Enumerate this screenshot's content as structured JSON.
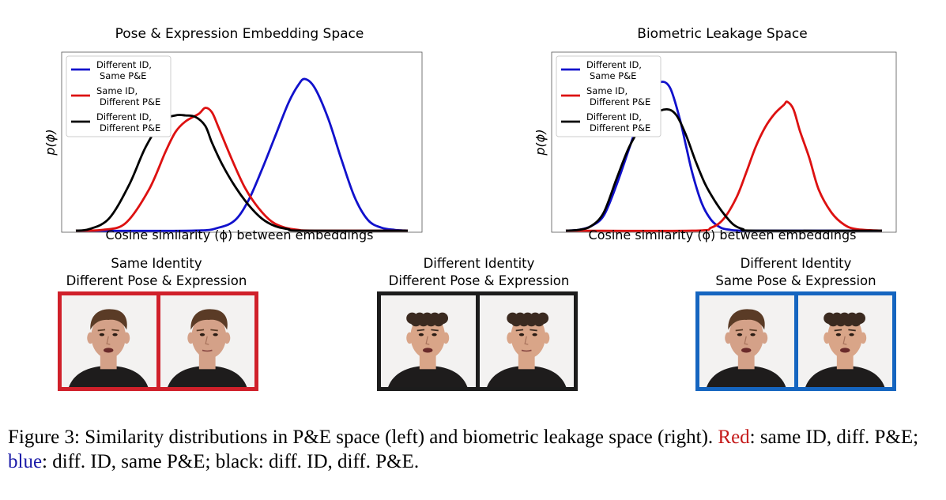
{
  "colors": {
    "blue": "#1111cc",
    "red": "#dd1111",
    "black": "#000000",
    "frame_red": "#d0202a",
    "frame_black": "#1c1c1c",
    "frame_blue": "#1565c0",
    "caption_red": "#c51b1b",
    "caption_blue": "#1a1aa8"
  },
  "chart_data": [
    {
      "type": "line",
      "title": "Pose & Expression Embedding Space",
      "xlabel": "Cosine similarity (ϕ) between embeddings",
      "ylabel": "p(ϕ)",
      "x_ticks": "hidden",
      "y_ticks": "hidden",
      "grid": false,
      "legend_position": "upper-left",
      "legend": [
        {
          "line1": "Different ID,",
          "line2": "Same P&E",
          "color": "#1111cc"
        },
        {
          "line1": "Same ID,",
          "line2": "Different P&E",
          "color": "#dd1111"
        },
        {
          "line1": "Different ID,",
          "line2": "Different P&E",
          "color": "#000000"
        }
      ],
      "xlim": [
        0,
        1
      ],
      "ylim": [
        0,
        1
      ],
      "series": [
        {
          "name": "Different ID, Same P&E",
          "color": "#1111cc",
          "x": [
            0.0,
            0.35,
            0.43,
            0.48,
            0.52,
            0.56,
            0.6,
            0.64,
            0.67,
            0.69,
            0.72,
            0.76,
            0.8,
            0.84,
            0.88,
            0.92,
            0.96,
            1.0
          ],
          "y": [
            0.0,
            0.0,
            0.02,
            0.07,
            0.2,
            0.4,
            0.62,
            0.84,
            0.96,
            1.0,
            0.94,
            0.74,
            0.47,
            0.22,
            0.07,
            0.02,
            0.005,
            0.0
          ]
        },
        {
          "name": "Same ID, Different P&E",
          "color": "#dd1111",
          "x": [
            0.0,
            0.08,
            0.15,
            0.22,
            0.27,
            0.3,
            0.33,
            0.37,
            0.39,
            0.41,
            0.43,
            0.47,
            0.51,
            0.55,
            0.59,
            0.63,
            0.67,
            0.72,
            1.0
          ],
          "y": [
            0.0,
            0.005,
            0.05,
            0.27,
            0.52,
            0.65,
            0.72,
            0.77,
            0.81,
            0.78,
            0.68,
            0.47,
            0.28,
            0.15,
            0.06,
            0.02,
            0.005,
            0.0,
            0.0
          ]
        },
        {
          "name": "Different ID, Different P&E",
          "color": "#000000",
          "x": [
            0.0,
            0.04,
            0.1,
            0.16,
            0.21,
            0.26,
            0.3,
            0.33,
            0.36,
            0.39,
            0.41,
            0.44,
            0.48,
            0.52,
            0.56,
            0.6,
            0.64,
            0.68,
            1.0
          ],
          "y": [
            0.0,
            0.01,
            0.08,
            0.3,
            0.55,
            0.72,
            0.76,
            0.76,
            0.75,
            0.69,
            0.58,
            0.44,
            0.29,
            0.17,
            0.08,
            0.03,
            0.01,
            0.0,
            0.0
          ]
        }
      ]
    },
    {
      "type": "line",
      "title": "Biometric Leakage Space",
      "xlabel": "Cosine similarity (ϕ) between embeddings",
      "ylabel": "p(ϕ)",
      "x_ticks": "hidden",
      "y_ticks": "hidden",
      "grid": false,
      "legend_position": "upper-left",
      "legend": [
        {
          "line1": "Different ID,",
          "line2": "Same P&E",
          "color": "#1111cc"
        },
        {
          "line1": "Same ID,",
          "line2": "Different P&E",
          "color": "#dd1111"
        },
        {
          "line1": "Different ID,",
          "line2": "Different P&E",
          "color": "#000000"
        }
      ],
      "xlim": [
        0,
        1
      ],
      "ylim": [
        0,
        1
      ],
      "series": [
        {
          "name": "Different ID, Same P&E",
          "color": "#1111cc",
          "x": [
            0.0,
            0.04,
            0.08,
            0.12,
            0.16,
            0.2,
            0.24,
            0.27,
            0.3,
            0.33,
            0.36,
            0.38,
            0.4,
            0.43,
            0.46,
            0.49,
            0.52,
            0.55,
            0.6,
            1.0
          ],
          "y": [
            0.0,
            0.005,
            0.03,
            0.1,
            0.3,
            0.54,
            0.78,
            0.91,
            0.98,
            0.94,
            0.74,
            0.56,
            0.38,
            0.18,
            0.07,
            0.02,
            0.005,
            0.0,
            0.0,
            0.0
          ]
        },
        {
          "name": "Same ID, Different P&E",
          "color": "#dd1111",
          "x": [
            0.0,
            0.4,
            0.46,
            0.5,
            0.54,
            0.57,
            0.6,
            0.63,
            0.66,
            0.69,
            0.7,
            0.72,
            0.74,
            0.77,
            0.8,
            0.84,
            0.88,
            0.92,
            1.0
          ],
          "y": [
            0.0,
            0.0,
            0.02,
            0.08,
            0.22,
            0.38,
            0.55,
            0.68,
            0.77,
            0.83,
            0.85,
            0.8,
            0.66,
            0.48,
            0.27,
            0.12,
            0.04,
            0.01,
            0.0
          ]
        },
        {
          "name": "Different ID, Different P&E",
          "color": "#000000",
          "x": [
            0.0,
            0.04,
            0.08,
            0.12,
            0.16,
            0.2,
            0.24,
            0.28,
            0.32,
            0.35,
            0.38,
            0.41,
            0.44,
            0.47,
            0.5,
            0.53,
            0.56,
            0.6,
            1.0
          ],
          "y": [
            0.0,
            0.005,
            0.03,
            0.12,
            0.34,
            0.55,
            0.69,
            0.77,
            0.8,
            0.76,
            0.63,
            0.46,
            0.31,
            0.2,
            0.11,
            0.04,
            0.01,
            0.0,
            0.0
          ]
        }
      ]
    }
  ],
  "image_groups": [
    {
      "line1": "Same Identity",
      "line2": "Different Pose & Expression",
      "frame": "red"
    },
    {
      "line1": "Different Identity",
      "line2": "Different Pose & Expression",
      "frame": "black"
    },
    {
      "line1": "Different Identity",
      "line2": "Same Pose & Expression",
      "frame": "blue"
    }
  ],
  "caption": {
    "prefix": "Figure 3: Similarity distributions in P&E space (left) and biometric leakage space (right). ",
    "red_word": "Red",
    "mid1": ": same ID, diff. P&E; ",
    "blue_word": "blue",
    "mid2": ": diff. ID, same P&E; black: diff. ID, diff. P&E."
  }
}
